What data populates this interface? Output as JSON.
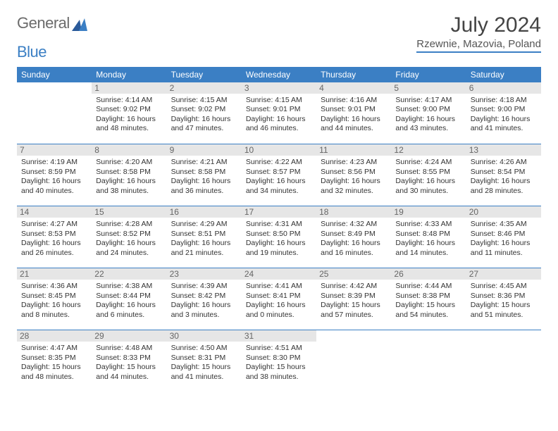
{
  "logo": {
    "text1": "General",
    "text2": "Blue"
  },
  "title": "July 2024",
  "subtitle": "Rzewnie, Mazovia, Poland",
  "header_bg": "#3b7fc4",
  "day_names": [
    "Sunday",
    "Monday",
    "Tuesday",
    "Wednesday",
    "Thursday",
    "Friday",
    "Saturday"
  ],
  "start_offset": 1,
  "days": [
    {
      "n": "1",
      "sr": "4:14 AM",
      "ss": "9:02 PM",
      "dl": "16 hours and 48 minutes."
    },
    {
      "n": "2",
      "sr": "4:15 AM",
      "ss": "9:02 PM",
      "dl": "16 hours and 47 minutes."
    },
    {
      "n": "3",
      "sr": "4:15 AM",
      "ss": "9:01 PM",
      "dl": "16 hours and 46 minutes."
    },
    {
      "n": "4",
      "sr": "4:16 AM",
      "ss": "9:01 PM",
      "dl": "16 hours and 44 minutes."
    },
    {
      "n": "5",
      "sr": "4:17 AM",
      "ss": "9:00 PM",
      "dl": "16 hours and 43 minutes."
    },
    {
      "n": "6",
      "sr": "4:18 AM",
      "ss": "9:00 PM",
      "dl": "16 hours and 41 minutes."
    },
    {
      "n": "7",
      "sr": "4:19 AM",
      "ss": "8:59 PM",
      "dl": "16 hours and 40 minutes."
    },
    {
      "n": "8",
      "sr": "4:20 AM",
      "ss": "8:58 PM",
      "dl": "16 hours and 38 minutes."
    },
    {
      "n": "9",
      "sr": "4:21 AM",
      "ss": "8:58 PM",
      "dl": "16 hours and 36 minutes."
    },
    {
      "n": "10",
      "sr": "4:22 AM",
      "ss": "8:57 PM",
      "dl": "16 hours and 34 minutes."
    },
    {
      "n": "11",
      "sr": "4:23 AM",
      "ss": "8:56 PM",
      "dl": "16 hours and 32 minutes."
    },
    {
      "n": "12",
      "sr": "4:24 AM",
      "ss": "8:55 PM",
      "dl": "16 hours and 30 minutes."
    },
    {
      "n": "13",
      "sr": "4:26 AM",
      "ss": "8:54 PM",
      "dl": "16 hours and 28 minutes."
    },
    {
      "n": "14",
      "sr": "4:27 AM",
      "ss": "8:53 PM",
      "dl": "16 hours and 26 minutes."
    },
    {
      "n": "15",
      "sr": "4:28 AM",
      "ss": "8:52 PM",
      "dl": "16 hours and 24 minutes."
    },
    {
      "n": "16",
      "sr": "4:29 AM",
      "ss": "8:51 PM",
      "dl": "16 hours and 21 minutes."
    },
    {
      "n": "17",
      "sr": "4:31 AM",
      "ss": "8:50 PM",
      "dl": "16 hours and 19 minutes."
    },
    {
      "n": "18",
      "sr": "4:32 AM",
      "ss": "8:49 PM",
      "dl": "16 hours and 16 minutes."
    },
    {
      "n": "19",
      "sr": "4:33 AM",
      "ss": "8:48 PM",
      "dl": "16 hours and 14 minutes."
    },
    {
      "n": "20",
      "sr": "4:35 AM",
      "ss": "8:46 PM",
      "dl": "16 hours and 11 minutes."
    },
    {
      "n": "21",
      "sr": "4:36 AM",
      "ss": "8:45 PM",
      "dl": "16 hours and 8 minutes."
    },
    {
      "n": "22",
      "sr": "4:38 AM",
      "ss": "8:44 PM",
      "dl": "16 hours and 6 minutes."
    },
    {
      "n": "23",
      "sr": "4:39 AM",
      "ss": "8:42 PM",
      "dl": "16 hours and 3 minutes."
    },
    {
      "n": "24",
      "sr": "4:41 AM",
      "ss": "8:41 PM",
      "dl": "16 hours and 0 minutes."
    },
    {
      "n": "25",
      "sr": "4:42 AM",
      "ss": "8:39 PM",
      "dl": "15 hours and 57 minutes."
    },
    {
      "n": "26",
      "sr": "4:44 AM",
      "ss": "8:38 PM",
      "dl": "15 hours and 54 minutes."
    },
    {
      "n": "27",
      "sr": "4:45 AM",
      "ss": "8:36 PM",
      "dl": "15 hours and 51 minutes."
    },
    {
      "n": "28",
      "sr": "4:47 AM",
      "ss": "8:35 PM",
      "dl": "15 hours and 48 minutes."
    },
    {
      "n": "29",
      "sr": "4:48 AM",
      "ss": "8:33 PM",
      "dl": "15 hours and 44 minutes."
    },
    {
      "n": "30",
      "sr": "4:50 AM",
      "ss": "8:31 PM",
      "dl": "15 hours and 41 minutes."
    },
    {
      "n": "31",
      "sr": "4:51 AM",
      "ss": "8:30 PM",
      "dl": "15 hours and 38 minutes."
    }
  ],
  "labels": {
    "sunrise": "Sunrise:",
    "sunset": "Sunset:",
    "daylight": "Daylight:"
  }
}
